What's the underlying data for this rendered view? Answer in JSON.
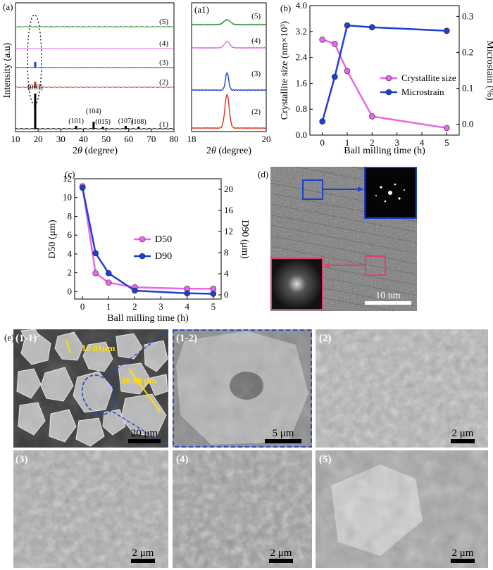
{
  "panel_labels": {
    "a": "(a)",
    "a1": "(a1)",
    "b": "(b)",
    "c": "(c)",
    "d": "(d)",
    "e": "(e)"
  },
  "chart_data": [
    {
      "id": "a",
      "type": "line",
      "xlabel_pre": "2",
      "xlabel_theta": "θ",
      "xlabel_post": " (degree)",
      "ylabel": "Intensity (a.u)",
      "xlim": [
        10,
        80
      ],
      "xticks": [
        "10",
        "20",
        "30",
        "40",
        "50",
        "60",
        "70",
        "80"
      ],
      "series": [
        {
          "name": "(5)",
          "color": "#2e8b2e"
        },
        {
          "name": "(4)",
          "color": "#e066e0"
        },
        {
          "name": "(3)",
          "color": "#1f3fd0"
        },
        {
          "name": "(2)",
          "color": "#e03020"
        },
        {
          "name": "(1)",
          "color": "#000000"
        }
      ],
      "peaks": [
        {
          "label": "(003)",
          "x": 18.7
        },
        {
          "label": "(101)",
          "x": 36.8
        },
        {
          "label": "(104)",
          "x": 44.5
        },
        {
          "label": "(015)",
          "x": 48.6
        },
        {
          "label": "(107)",
          "x": 58.7
        },
        {
          "label": "(108)",
          "x": 64.4
        }
      ]
    },
    {
      "id": "a1",
      "type": "line",
      "xlabel_pre": "2",
      "xlabel_theta": "θ",
      "xlabel_post": " (degree)",
      "xlim": [
        18,
        20
      ],
      "xticks": [
        "18",
        "20"
      ],
      "series": [
        {
          "name": "(5)",
          "color": "#2e8b2e"
        },
        {
          "name": "(4)",
          "color": "#e066e0"
        },
        {
          "name": "(3)",
          "color": "#1f3fd0"
        },
        {
          "name": "(2)",
          "color": "#e03020"
        }
      ]
    },
    {
      "id": "b",
      "type": "line",
      "xlabel": "Ball milling time (h)",
      "ylabel_left": "Crystallite size (nm×10³)",
      "ylabel_right": "Microstain (%)",
      "xlim": [
        -0.5,
        5.5
      ],
      "ylim_left": [
        0,
        4.0
      ],
      "ylim_right": [
        -0.03,
        0.33
      ],
      "xticks": [
        "0",
        "1",
        "2",
        "3",
        "4",
        "5"
      ],
      "yticks_left": [
        "0.0",
        "0.8",
        "1.6",
        "2.4",
        "3.2",
        "4.0"
      ],
      "yticks_right": [
        "0.0",
        "0.1",
        "0.2",
        "0.3"
      ],
      "x": [
        0,
        0.5,
        1,
        2,
        5
      ],
      "series": [
        {
          "name": "Crystallite size",
          "axis": "left",
          "color": "#e866e8",
          "values": [
            2.95,
            2.82,
            1.98,
            0.58,
            0.22
          ]
        },
        {
          "name": "Microstrain",
          "axis": "right",
          "color": "#1f3fd0",
          "values": [
            0.008,
            0.132,
            0.275,
            0.27,
            0.26
          ]
        }
      ]
    },
    {
      "id": "c",
      "type": "line",
      "xlabel": "Ball milling time (h)",
      "ylabel_left": "D50 (μm)",
      "ylabel_right": "D90 (μm)",
      "xlim": [
        -0.3,
        5.3
      ],
      "ylim_left": [
        -0.8,
        12
      ],
      "ylim_right": [
        -0.8,
        22
      ],
      "xticks": [
        "0",
        "1",
        "2",
        "3",
        "4",
        "5"
      ],
      "yticks_left": [
        "0",
        "2",
        "4",
        "6",
        "8",
        "10",
        "12"
      ],
      "yticks_right": [
        "0",
        "4",
        "8",
        "12",
        "16",
        "20"
      ],
      "x": [
        0,
        0.5,
        1,
        2,
        4,
        5
      ],
      "series": [
        {
          "name": "D50",
          "axis": "left",
          "color": "#e866e8",
          "values": [
            11.2,
            1.95,
            0.95,
            0.45,
            0.3,
            0.3
          ]
        },
        {
          "name": "D90",
          "axis": "right",
          "color": "#1f3fd0",
          "values": [
            20.3,
            7.9,
            4.1,
            0.8,
            0.3,
            0.2
          ]
        }
      ]
    }
  ],
  "panel_d": {
    "scale_label": "10 nm"
  },
  "sem_panels": [
    {
      "label": "(1-1)",
      "scale": "20 μm",
      "meas1": "10.01μm",
      "meas2": "30.88 μm"
    },
    {
      "label": "(1-2)",
      "scale": "5 μm"
    },
    {
      "label": "(2)",
      "scale": "2 μm"
    },
    {
      "label": "(3)",
      "scale": "2 μm"
    },
    {
      "label": "(4)",
      "scale": "2 μm"
    },
    {
      "label": "(5)",
      "scale": "2 μm"
    }
  ],
  "colors": {
    "magenta": "#e866e8",
    "blue": "#1f3fd0",
    "green": "#2e8b2e",
    "red": "#e03020",
    "yellow": "#ffe000"
  }
}
